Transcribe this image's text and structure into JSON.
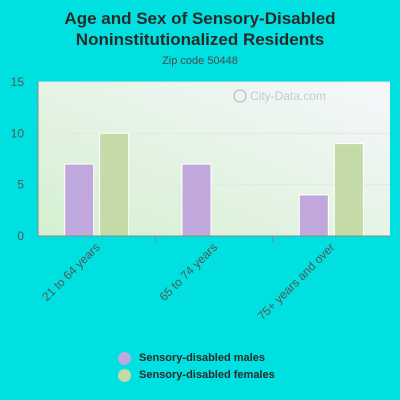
{
  "chart_data": {
    "type": "bar",
    "title": "Age and Sex of Sensory-Disabled Noninstitutionalized Residents",
    "subtitle": "Zip code 50448",
    "categories": [
      "21 to 64 years",
      "65 to 74 years",
      "75+ years and over"
    ],
    "series": [
      {
        "name": "Sensory-disabled males",
        "values": [
          7,
          7,
          4
        ],
        "color": "#c0a8dc"
      },
      {
        "name": "Sensory-disabled females",
        "values": [
          10,
          0,
          9
        ],
        "color": "#c4dba8"
      }
    ],
    "ylim": [
      0,
      15
    ],
    "yticks": [
      0,
      5,
      10,
      15
    ],
    "grid": true,
    "legend": "bottom",
    "watermark": "City-Data.com"
  }
}
